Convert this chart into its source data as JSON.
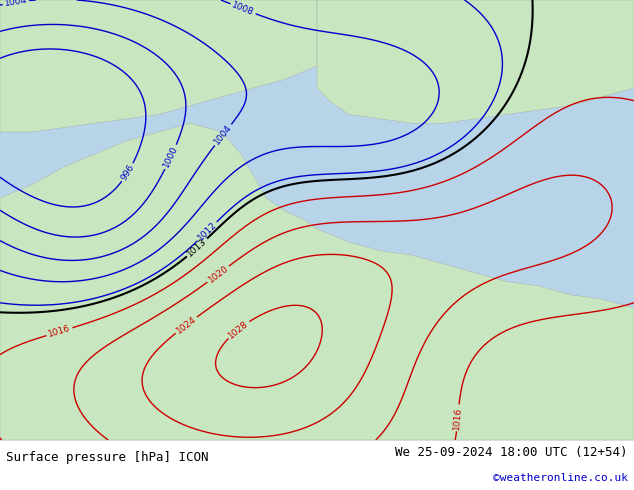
{
  "title_left": "Surface pressure [hPa] ICON",
  "title_right": "We 25-09-2024 18:00 UTC (12+54)",
  "credit": "©weatheronline.co.uk",
  "bg_color": "#ffffff",
  "map_bg_color": "#d6ecd2",
  "sea_color": "#d0e8f0",
  "land_color": "#c8e6c0",
  "text_color_left": "#000000",
  "text_color_right": "#000000",
  "credit_color": "#0000cc",
  "bottom_bar_color": "#e8e8e8",
  "font_size_bottom": 9,
  "fig_width": 6.34,
  "fig_height": 4.9
}
